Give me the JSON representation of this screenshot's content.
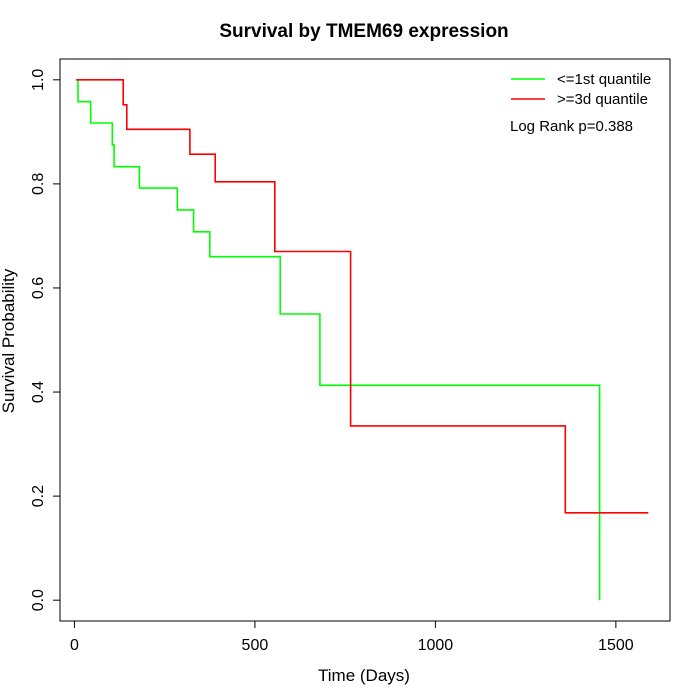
{
  "chart_data": {
    "type": "line",
    "subtype": "kaplan-meier step curve",
    "title": "Survival by TMEM69 expression",
    "xlabel": "Time (Days)",
    "ylabel": "Survival Probability",
    "xlim": [
      -40,
      1650
    ],
    "ylim": [
      -0.04,
      1.04
    ],
    "x_ticks": [
      0,
      500,
      1000,
      1500
    ],
    "y_ticks": [
      0.0,
      0.2,
      0.4,
      0.6,
      0.8,
      1.0
    ],
    "x_tick_labels": [
      "0",
      "500",
      "1000",
      "1500"
    ],
    "y_tick_labels": [
      "0.0",
      "0.2",
      "0.4",
      "0.6",
      "0.8",
      "1.0"
    ],
    "grid": false,
    "legend_position": "top-right",
    "annotation": "Log Rank p=0.388",
    "series": [
      {
        "name": "<=1st quantile",
        "color": "#00ff00",
        "points": [
          [
            5,
            1.0
          ],
          [
            10,
            1.0
          ],
          [
            10,
            0.958
          ],
          [
            45,
            0.958
          ],
          [
            45,
            0.917
          ],
          [
            105,
            0.917
          ],
          [
            105,
            0.875
          ],
          [
            110,
            0.875
          ],
          [
            110,
            0.833
          ],
          [
            180,
            0.833
          ],
          [
            180,
            0.792
          ],
          [
            285,
            0.792
          ],
          [
            285,
            0.75
          ],
          [
            330,
            0.75
          ],
          [
            330,
            0.708
          ],
          [
            375,
            0.708
          ],
          [
            375,
            0.66
          ],
          [
            570,
            0.66
          ],
          [
            570,
            0.55
          ],
          [
            680,
            0.55
          ],
          [
            680,
            0.413
          ],
          [
            1455,
            0.413
          ],
          [
            1455,
            0.0
          ]
        ]
      },
      {
        "name": ">=3d quantile",
        "color": "#ff0000",
        "points": [
          [
            5,
            1.0
          ],
          [
            135,
            1.0
          ],
          [
            135,
            0.952
          ],
          [
            145,
            0.952
          ],
          [
            145,
            0.905
          ],
          [
            320,
            0.905
          ],
          [
            320,
            0.857
          ],
          [
            390,
            0.857
          ],
          [
            390,
            0.804
          ],
          [
            555,
            0.804
          ],
          [
            555,
            0.67
          ],
          [
            765,
            0.67
          ],
          [
            765,
            0.5
          ],
          [
            765,
            0.335
          ],
          [
            1360,
            0.335
          ],
          [
            1360,
            0.168
          ],
          [
            1590,
            0.168
          ]
        ]
      }
    ]
  }
}
